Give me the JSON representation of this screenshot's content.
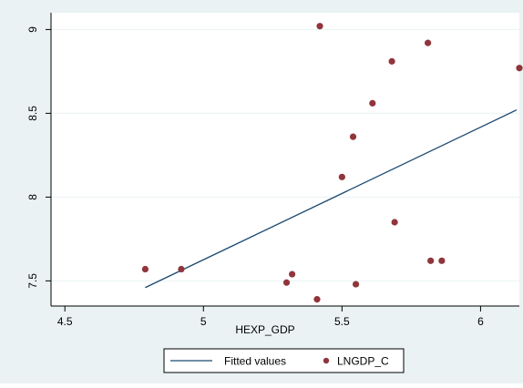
{
  "chart_data": {
    "type": "scatter",
    "title": "",
    "xlabel": "HEXP_GDP",
    "ylabel": "",
    "xlim": [
      4.45,
      6.14
    ],
    "ylim": [
      7.35,
      9.1
    ],
    "grid": true,
    "legend_position": "bottom",
    "x_ticks": [
      4.5,
      5,
      5.5,
      6
    ],
    "x_tick_labels": [
      "4.5",
      "5",
      "5.5",
      "6"
    ],
    "y_ticks": [
      7.5,
      8,
      8.5,
      9
    ],
    "y_tick_labels": [
      "7.5",
      "8",
      "8.5",
      "9"
    ],
    "series": [
      {
        "name": "Fitted values",
        "kind": "line",
        "color": "#1a476f",
        "x": [
          4.79,
          6.13
        ],
        "y": [
          7.46,
          8.52
        ]
      },
      {
        "name": "LNGDP_C",
        "kind": "scatter",
        "color": "#90353b",
        "x": [
          4.79,
          4.92,
          5.3,
          5.32,
          5.41,
          5.42,
          5.5,
          5.54,
          5.55,
          5.61,
          5.68,
          5.69,
          5.81,
          5.82,
          5.86,
          6.14
        ],
        "y": [
          7.57,
          7.57,
          7.49,
          7.54,
          7.39,
          9.02,
          8.12,
          8.36,
          7.48,
          8.56,
          8.81,
          7.85,
          8.92,
          7.62,
          7.62,
          8.77
        ]
      }
    ]
  }
}
